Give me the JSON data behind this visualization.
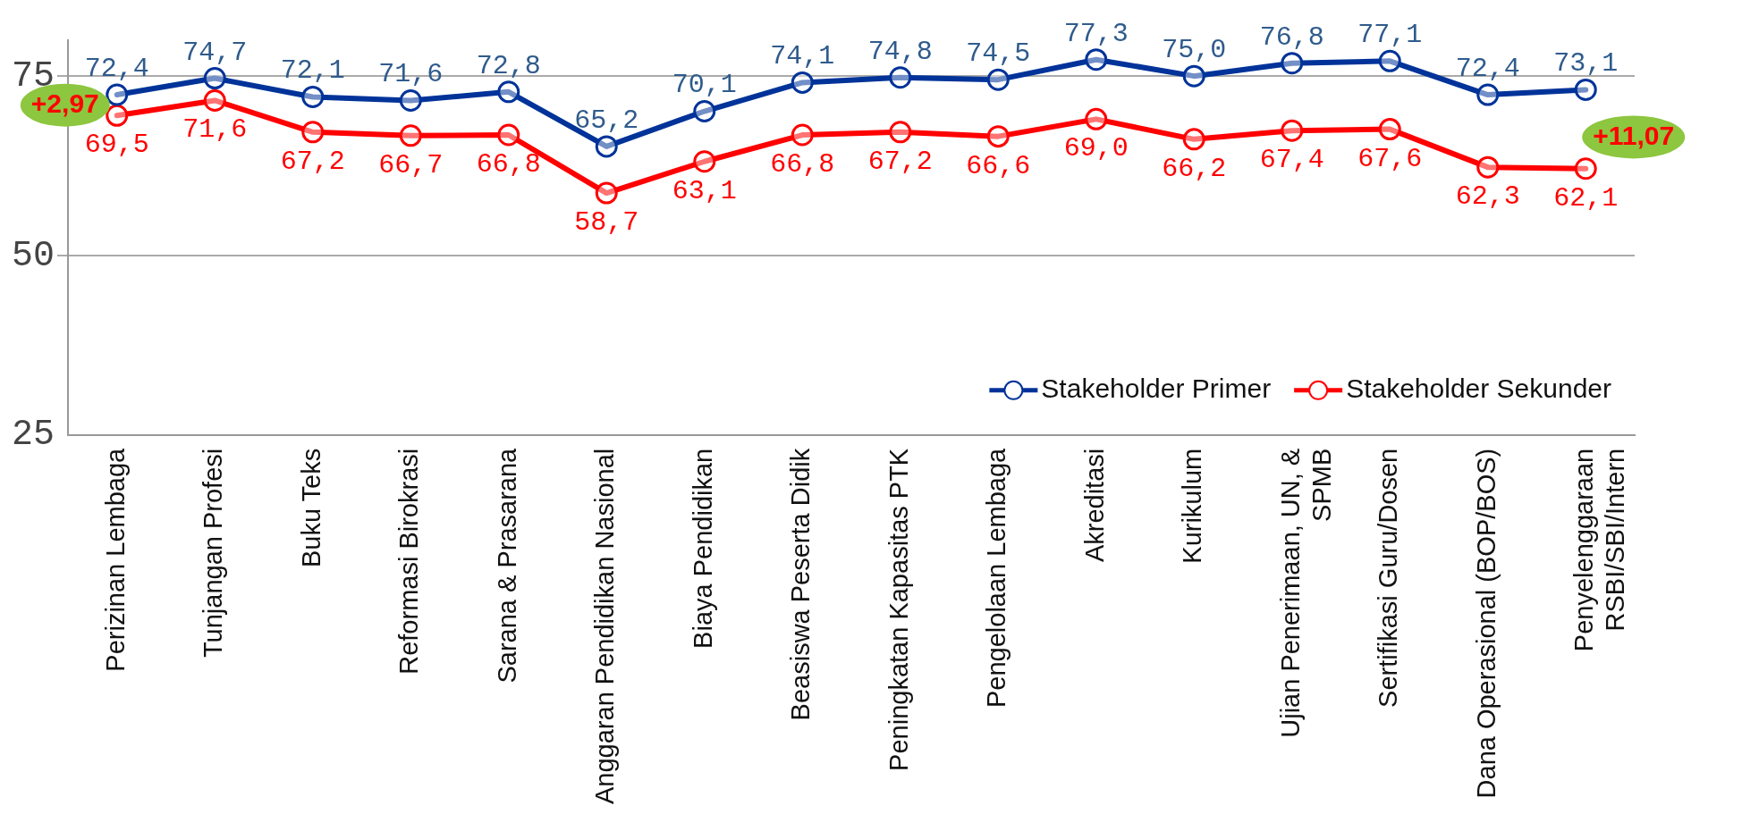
{
  "chart_data": {
    "type": "line",
    "categories": [
      "Perizinan Lembaga",
      "Tunjangan Profesi",
      "Buku Teks",
      "Reformasi Birokrasi",
      "Sarana & Prasarana",
      "Anggaran Pendidikan Nasional",
      "Biaya Pendidikan",
      "Beasiswa Peserta Didik",
      "Peningkatan Kapasitas PTK",
      "Pengelolaan Lembaga",
      "Akreditasi",
      "Kurikulum",
      "Ujian Penerimaan, UN, &\nSPMB",
      "Sertifikasi Guru/Dosen",
      "Dana Operasional (BOP/BOS)",
      "Penyelenggaraan\nRSBI/SBI/Intern"
    ],
    "series": [
      {
        "name": "Stakeholder Primer",
        "color": "#003399",
        "values": [
          72.4,
          74.7,
          72.1,
          71.6,
          72.8,
          65.2,
          70.1,
          74.1,
          74.8,
          74.5,
          77.3,
          75.0,
          76.8,
          77.1,
          72.4,
          73.1
        ]
      },
      {
        "name": "Stakeholder Sekunder",
        "color": "#ff0000",
        "values": [
          69.5,
          71.6,
          67.2,
          66.7,
          66.8,
          58.7,
          63.1,
          66.8,
          67.2,
          66.6,
          69.0,
          66.2,
          67.4,
          67.6,
          62.3,
          62.1
        ]
      }
    ],
    "value_labels": [
      [
        "72,4",
        "74,7",
        "72,1",
        "71,6",
        "72,8",
        "65,2",
        "70,1",
        "74,1",
        "74,8",
        "74,5",
        "77,3",
        "75,0",
        "76,8",
        "77,1",
        "72,4",
        "73,1"
      ],
      [
        "69,5",
        "71,6",
        "67,2",
        "66,7",
        "66,8",
        "58,7",
        "63,1",
        "66,8",
        "67,2",
        "66,6",
        "69,0",
        "66,2",
        "67,4",
        "67,6",
        "62,3",
        "62,1"
      ]
    ],
    "ylim": [
      25,
      80
    ],
    "yticks": [
      25,
      50,
      75
    ],
    "grid": "y",
    "legend": "bottom right",
    "marker": "circle",
    "line_style": "solid",
    "annotations": [
      "+2,97",
      "+11,07"
    ]
  }
}
